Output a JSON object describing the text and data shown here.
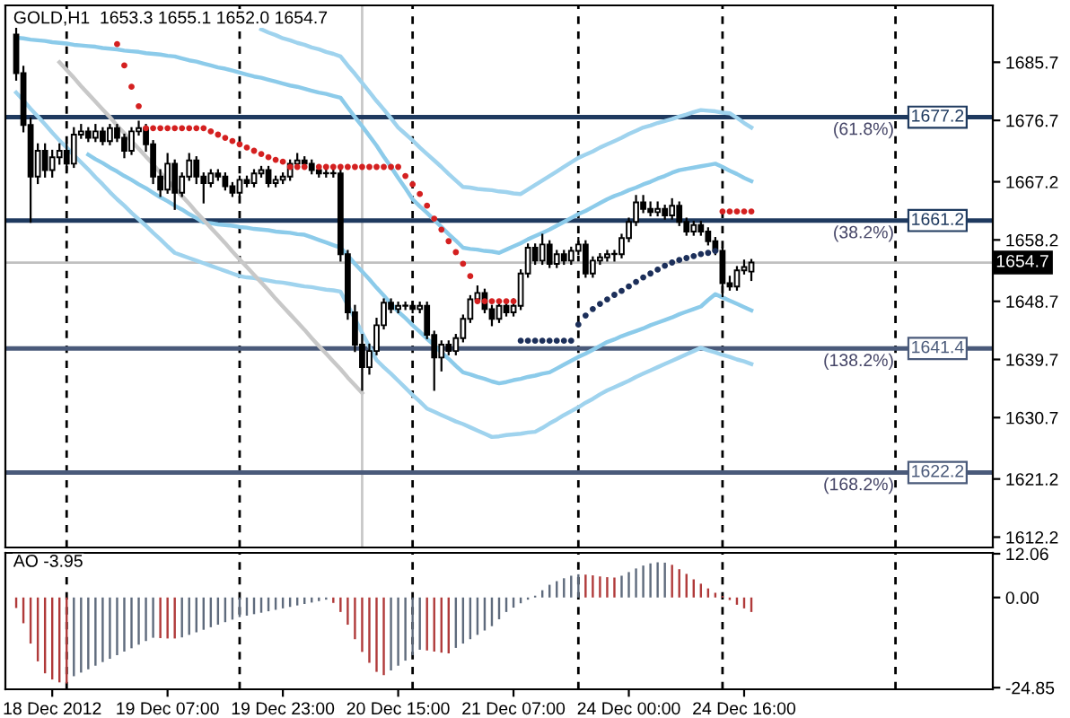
{
  "chart_data": [
    {
      "type": "candlestick",
      "title": "GOLD,H1  1653.3 1655.1 1652.0 1654.7",
      "tick_labels": "y",
      "grid": false,
      "ylim": [
        1610.6,
        1694.5
      ],
      "yticks": [
        1612.2,
        1621.2,
        1630.7,
        1639.7,
        1648.7,
        1658.2,
        1667.2,
        1676.7,
        1685.7
      ],
      "categories": [
        null,
        null,
        null,
        null,
        null,
        null,
        null,
        null,
        null,
        null,
        null,
        null,
        null,
        null,
        null,
        null,
        null,
        null,
        null,
        null,
        null,
        null,
        null,
        null,
        null,
        null,
        null,
        null,
        null,
        null,
        null,
        null,
        null,
        null,
        null,
        null,
        null,
        null,
        null,
        null,
        null,
        null,
        null,
        null,
        null,
        null,
        null,
        null,
        null,
        null,
        null,
        null,
        null,
        null,
        null,
        null,
        null,
        null,
        null,
        null,
        null,
        null,
        null,
        null,
        null,
        null,
        null,
        null,
        null,
        null,
        null,
        null,
        null,
        null,
        null,
        null,
        null,
        null,
        null,
        null,
        null,
        null,
        null,
        null,
        null,
        null,
        null,
        null,
        null,
        null,
        null,
        null,
        null,
        null,
        null,
        null,
        null,
        null,
        null,
        null,
        null,
        null,
        null,
        null,
        null,
        null,
        null,
        null,
        null,
        null,
        null,
        null,
        null,
        null,
        null,
        null,
        null,
        null,
        null,
        null,
        null,
        null,
        null,
        null,
        null,
        null,
        null,
        null,
        null,
        null,
        null,
        null,
        null,
        null,
        null,
        null,
        null
      ],
      "ohlc": [
        null,
        [
          1690,
          1691,
          1683,
          1684
        ],
        [
          1684,
          1685,
          1675,
          1676
        ],
        [
          1676,
          1677,
          1661,
          1668
        ],
        [
          1668,
          1673,
          1667,
          1672
        ],
        [
          1672,
          1673,
          1668,
          1669
        ],
        [
          1669,
          1672,
          1668,
          1671
        ],
        [
          1671,
          1673,
          1670,
          1672
        ],
        [
          1672,
          1673,
          1669,
          1670
        ],
        [
          1670,
          1675.5,
          1669.5,
          1674.5
        ],
        [
          1674.5,
          1676,
          1674,
          1675
        ],
        [
          1675,
          1675.5,
          1673.5,
          1674
        ],
        [
          1674,
          1676,
          1673.5,
          1675
        ],
        [
          1675,
          1675.5,
          1673,
          1673.5
        ],
        [
          1673.5,
          1676,
          1673,
          1675.5
        ],
        [
          1675.5,
          1676,
          1673.5,
          1674
        ],
        [
          1674,
          1674.5,
          1671,
          1672
        ],
        [
          1672,
          1675.5,
          1671.5,
          1675
        ],
        [
          1675,
          1676.5,
          1674.5,
          1675.5
        ],
        [
          1675.5,
          1676,
          1672,
          1673
        ],
        [
          1673,
          1673.5,
          1667,
          1668
        ],
        [
          1668,
          1669,
          1665,
          1666
        ],
        [
          1666,
          1671.5,
          1665.5,
          1670
        ],
        [
          1670,
          1670.5,
          1663,
          1665.5
        ],
        [
          1665.5,
          1668.5,
          1665,
          1668
        ],
        [
          1668,
          1671.5,
          1667.5,
          1670.5
        ],
        [
          1670.5,
          1671,
          1667,
          1668
        ],
        [
          1668,
          1668.5,
          1664,
          1667
        ],
        [
          1667,
          1669,
          1666.5,
          1668.5
        ],
        [
          1668.5,
          1669,
          1667.5,
          1668
        ],
        [
          1668,
          1668.5,
          1666,
          1666.5
        ],
        [
          1666.5,
          1667,
          1665,
          1665.5
        ],
        [
          1665.5,
          1668,
          1665,
          1667.5
        ],
        [
          1667.5,
          1668,
          1666.5,
          1667
        ],
        [
          1667,
          1669,
          1666.5,
          1668.5
        ],
        [
          1668.5,
          1669.5,
          1668,
          1669
        ],
        [
          1669,
          1669.5,
          1666.5,
          1667
        ],
        [
          1667,
          1668,
          1666.5,
          1667.5
        ],
        [
          1667.5,
          1668.5,
          1667,
          1668
        ],
        [
          1668,
          1670.5,
          1667.5,
          1670
        ],
        [
          1670,
          1671.5,
          1669.5,
          1670.5
        ],
        [
          1670.5,
          1671,
          1669.5,
          1670
        ],
        [
          1670,
          1670.5,
          1668.5,
          1669
        ],
        [
          1669,
          1669.5,
          1668,
          1668.5
        ],
        [
          1668.5,
          1669,
          1668,
          1668.5
        ],
        [
          1668.5,
          1669,
          1668,
          1668.5
        ],
        [
          1668.5,
          1669,
          1655,
          1656
        ],
        [
          1656,
          1656.5,
          1646,
          1647
        ],
        [
          1647,
          1648,
          1641,
          1642
        ],
        [
          1642,
          1643.5,
          1635,
          1638.5
        ],
        [
          1638.5,
          1642,
          1637.5,
          1641
        ],
        [
          1641,
          1646,
          1640.5,
          1645
        ],
        [
          1645,
          1649,
          1644.5,
          1648.5
        ],
        [
          1648.5,
          1649,
          1647,
          1647.5
        ],
        [
          1647.5,
          1648.5,
          1647,
          1648
        ],
        [
          1648,
          1648.5,
          1647.5,
          1648
        ],
        [
          1648,
          1648.5,
          1647,
          1647.5
        ],
        [
          1647.5,
          1648.5,
          1647,
          1648
        ],
        [
          1648,
          1648.5,
          1643,
          1643.5
        ],
        [
          1643.5,
          1644,
          1635,
          1640
        ],
        [
          1640,
          1642.5,
          1638,
          1642
        ],
        [
          1642,
          1642.5,
          1640.5,
          1641
        ],
        [
          1641,
          1643.5,
          1640.5,
          1643
        ],
        [
          1643,
          1646.5,
          1642.5,
          1646
        ],
        [
          1646,
          1649.5,
          1645.5,
          1649
        ],
        [
          1649,
          1651,
          1648.5,
          1650
        ],
        [
          1650,
          1650.5,
          1647,
          1647.5
        ],
        [
          1647.5,
          1648,
          1645,
          1646
        ],
        [
          1646,
          1648.5,
          1645.5,
          1648
        ],
        [
          1648,
          1648.5,
          1646.5,
          1647
        ],
        [
          1647,
          1649,
          1646.5,
          1648
        ],
        [
          1648,
          1653.5,
          1647.5,
          1653
        ],
        [
          1653,
          1657.5,
          1652.5,
          1657
        ],
        [
          1657,
          1657.5,
          1654.5,
          1655
        ],
        [
          1655,
          1659,
          1654.5,
          1657.5
        ],
        [
          1657.5,
          1658,
          1654,
          1654.5
        ],
        [
          1654.5,
          1656.5,
          1654,
          1656
        ],
        [
          1656,
          1656.5,
          1654.5,
          1655
        ],
        [
          1655,
          1657,
          1654.5,
          1656.5
        ],
        [
          1656.5,
          1658.5,
          1656,
          1657.5
        ],
        [
          1657.5,
          1658,
          1652.5,
          1653
        ],
        [
          1653,
          1655.5,
          1652.5,
          1655
        ],
        [
          1655,
          1656,
          1654.5,
          1655.5
        ],
        [
          1655.5,
          1656.5,
          1655,
          1656
        ],
        [
          1656,
          1656.5,
          1655,
          1656
        ],
        [
          1656,
          1659,
          1655.5,
          1658.5
        ],
        [
          1658.5,
          1661.5,
          1658,
          1661
        ],
        [
          1661,
          1665,
          1660.5,
          1664
        ],
        [
          1664,
          1665,
          1662.5,
          1663
        ],
        [
          1663,
          1664,
          1662,
          1662.5
        ],
        [
          1662.5,
          1664,
          1662,
          1663
        ],
        [
          1663,
          1663.5,
          1661.5,
          1662
        ],
        [
          1662,
          1664.5,
          1661.5,
          1663.5
        ],
        [
          1663.5,
          1664,
          1660.5,
          1661
        ],
        [
          1661,
          1661.5,
          1659,
          1659.5
        ],
        [
          1659.5,
          1661,
          1659,
          1660.5
        ],
        [
          1660.5,
          1661,
          1659,
          1659.5
        ],
        [
          1659.5,
          1660,
          1657.5,
          1658
        ],
        [
          1658,
          1658.5,
          1656,
          1656.5
        ],
        [
          1656.5,
          1657,
          1649.5,
          1651.5
        ],
        [
          1651.5,
          1652.5,
          1650.5,
          1651
        ],
        [
          1651,
          1654,
          1650.5,
          1653.5
        ],
        [
          1653.5,
          1655,
          1653,
          1654
        ],
        [
          1653.3,
          1655.1,
          1652.0,
          1654.7
        ],
        null,
        null,
        null,
        null,
        null,
        null,
        null,
        null,
        null,
        null,
        null,
        null,
        null,
        null,
        null,
        null,
        null,
        null,
        null,
        null,
        null,
        null,
        null,
        null,
        null,
        null,
        null,
        null,
        null,
        null,
        null,
        null,
        null
      ],
      "series": [
        {
          "type": "line",
          "color": "#9fd3ee",
          "values": [
            null,
            null,
            null,
            null,
            null,
            null,
            null,
            null,
            null,
            null,
            null,
            null,
            null,
            null,
            null,
            null,
            null,
            null,
            null,
            null,
            null,
            null,
            null,
            null,
            null,
            null,
            null,
            null,
            null,
            null,
            null,
            null,
            null,
            null,
            null,
            1690.8,
            1690.3,
            1689.9,
            1689.4,
            1689.1,
            1688.7,
            1688.4,
            1688.0,
            1687.7,
            1687.3,
            1687.0,
            1686.6,
            1685.2,
            1683.9,
            1682.5,
            1681.1,
            1679.7,
            1678.4,
            1677.0,
            1675.6,
            1674.6,
            1673.6,
            1672.5,
            1671.5,
            1670.5,
            1669.5,
            1668.4,
            1667.4,
            1666.4,
            1666.3,
            1666.1,
            1666.0,
            1665.9,
            1665.7,
            1665.6,
            1665.4,
            1665.3,
            1666.0,
            1666.7,
            1667.4,
            1668.1,
            1668.8,
            1669.5,
            1670.2,
            1670.9,
            1671.4,
            1671.9,
            1672.5,
            1673.0,
            1673.5,
            1674.0,
            1674.6,
            1675.1,
            1675.6,
            1675.9,
            1676.3,
            1676.6,
            1676.9,
            1677.3,
            1677.6,
            1678.0,
            1678.3,
            1678.2,
            1678.1,
            1677.9,
            1677.8,
            1677.1,
            1676.3,
            1675.6,
            null,
            null,
            null,
            null,
            null,
            null,
            null,
            null,
            null,
            null,
            null,
            null,
            null,
            null,
            null,
            null,
            null,
            null,
            null,
            null,
            null,
            null,
            null,
            null,
            null,
            null,
            null,
            null,
            null,
            null,
            null,
            null,
            null
          ]
        },
        {
          "type": "line",
          "color": "#8ccbea",
          "values": [
            null,
            1689.5,
            1689.4,
            1689.2,
            1689.1,
            1689.0,
            1688.8,
            1688.7,
            1688.6,
            1688.4,
            1688.3,
            1688.2,
            1688.1,
            1687.9,
            1687.8,
            1687.7,
            1687.5,
            1687.4,
            1687.3,
            1687.1,
            1687.0,
            1686.9,
            1686.7,
            1686.6,
            1686.3,
            1686.0,
            1685.8,
            1685.5,
            1685.2,
            1684.9,
            1684.7,
            1684.4,
            1684.1,
            1683.8,
            1683.5,
            1683.3,
            1683.0,
            1682.7,
            1682.4,
            1682.1,
            1681.9,
            1681.6,
            1681.3,
            1681.0,
            1680.8,
            1680.5,
            1680.2,
            1678.7,
            1677.2,
            1675.8,
            1674.3,
            1672.8,
            1671.1,
            1669.5,
            1667.8,
            1666.2,
            1664.5,
            1663.4,
            1662.4,
            1661.3,
            1660.2,
            1659.1,
            1658.1,
            1657.0,
            1656.8,
            1656.7,
            1656.5,
            1656.4,
            1656.2,
            1656.7,
            1657.2,
            1657.7,
            1658.3,
            1658.8,
            1659.3,
            1659.8,
            1660.4,
            1661.0,
            1661.6,
            1662.2,
            1662.7,
            1663.3,
            1663.9,
            1664.5,
            1665.0,
            1665.4,
            1665.9,
            1666.3,
            1666.8,
            1667.2,
            1667.7,
            1668.1,
            1668.6,
            1669.0,
            1669.2,
            1669.4,
            1669.6,
            1669.8,
            1670.0,
            1669.5,
            1668.9,
            1668.4,
            1667.8,
            1667.3,
            null,
            null,
            null,
            null,
            null,
            null,
            null,
            null,
            null,
            null,
            null,
            null,
            null,
            null,
            null,
            null,
            null,
            null,
            null,
            null,
            null,
            null,
            null,
            null,
            null,
            null,
            null,
            null,
            null,
            null,
            null,
            null,
            null
          ]
        },
        {
          "type": "line",
          "color": "#8ccbea",
          "values": [
            null,
            null,
            null,
            null,
            null,
            null,
            null,
            null,
            null,
            null,
            null,
            1671.4,
            1670.7,
            1670.1,
            1669.4,
            1668.8,
            1668.1,
            1667.5,
            1666.8,
            1666.2,
            1665.5,
            1664.8,
            1664.2,
            1663.5,
            1662.9,
            1662.2,
            1661.6,
            1660.9,
            1660.8,
            1660.6,
            1660.5,
            1660.4,
            1660.2,
            1660.1,
            1659.9,
            1659.8,
            1659.7,
            1659.5,
            1659.4,
            1659.3,
            1659.1,
            1659.0,
            1658.6,
            1658.2,
            1657.8,
            1657.4,
            1657.0,
            1655.8,
            1654.5,
            1653.3,
            1652.1,
            1650.8,
            1649.6,
            1648.3,
            1647.1,
            1646.1,
            1645.0,
            1644.0,
            1642.9,
            1641.9,
            1640.8,
            1639.8,
            1638.7,
            1637.7,
            1637.4,
            1637.0,
            1636.7,
            1636.3,
            1636.0,
            1636.2,
            1636.5,
            1636.7,
            1637.0,
            1637.2,
            1637.5,
            1637.7,
            1638.3,
            1638.9,
            1639.5,
            1640.1,
            1640.6,
            1641.2,
            1641.8,
            1642.4,
            1642.8,
            1643.3,
            1643.7,
            1644.1,
            1644.5,
            1645.0,
            1645.4,
            1645.8,
            1646.2,
            1646.7,
            1647.1,
            1647.5,
            1647.9,
            1648.9,
            1649.8,
            1649.3,
            1648.8,
            1648.3,
            1647.8,
            1647.3,
            null,
            null,
            null,
            null,
            null,
            null,
            null,
            null,
            null,
            null,
            null,
            null,
            null,
            null,
            null,
            null,
            null,
            null,
            null,
            null,
            null,
            null,
            null,
            null,
            null,
            null,
            null,
            null,
            null,
            null,
            null,
            null,
            null
          ]
        },
        {
          "type": "line",
          "color": "#9fd3ee",
          "values": [
            null,
            1681.0,
            1679.8,
            1678.5,
            1677.3,
            1676.1,
            1674.8,
            1673.6,
            1672.5,
            1671.3,
            1670.2,
            1669.1,
            1667.9,
            1666.8,
            1665.6,
            1664.5,
            1663.5,
            1662.4,
            1661.4,
            1660.4,
            1659.3,
            1658.3,
            1657.2,
            1656.2,
            1655.8,
            1655.4,
            1655.0,
            1654.6,
            1654.2,
            1653.8,
            1653.4,
            1653.0,
            1652.6,
            1652.4,
            1652.3,
            1652.1,
            1651.9,
            1651.7,
            1651.6,
            1651.4,
            1651.2,
            1651.0,
            1650.9,
            1650.7,
            1650.5,
            1650.4,
            1650.2,
            1648.1,
            1646.0,
            1643.8,
            1641.7,
            1639.6,
            1638.5,
            1637.5,
            1636.4,
            1635.3,
            1634.2,
            1633.2,
            1632.1,
            1631.6,
            1631.1,
            1630.6,
            1630.1,
            1629.7,
            1629.2,
            1628.7,
            1628.2,
            1627.7,
            1627.8,
            1628.0,
            1628.1,
            1628.2,
            1628.4,
            1628.5,
            1629.1,
            1629.8,
            1630.4,
            1631.1,
            1631.7,
            1632.3,
            1633.0,
            1633.6,
            1634.3,
            1634.9,
            1635.4,
            1635.9,
            1636.4,
            1637.0,
            1637.5,
            1638.0,
            1638.5,
            1639.0,
            1639.5,
            1640.0,
            1640.5,
            1641.0,
            1641.5,
            1641.1,
            1640.8,
            1640.4,
            1640.1,
            1639.7,
            1639.4,
            1639.0,
            null,
            null,
            null,
            null,
            null,
            null,
            null,
            null,
            null,
            null,
            null,
            null,
            null,
            null,
            null,
            null,
            null,
            null,
            null,
            null,
            null,
            null,
            null,
            null,
            null,
            null,
            null,
            null,
            null,
            null,
            null,
            null,
            null
          ]
        },
        {
          "type": "line",
          "color": "#c8c8c8",
          "values": [
            null,
            null,
            null,
            null,
            null,
            null,
            null,
            1685.7,
            1684.5,
            1683.3,
            1682.0,
            1680.8,
            1679.6,
            1678.4,
            1677.2,
            1675.9,
            1674.7,
            1673.5,
            1672.3,
            1671.1,
            1669.9,
            1668.6,
            1667.4,
            1666.2,
            1665.0,
            1663.8,
            1662.5,
            1661.3,
            1660.1,
            1658.9,
            1657.7,
            1656.4,
            1655.2,
            1654.0,
            1652.8,
            1651.6,
            1650.4,
            1649.1,
            1647.9,
            1646.7,
            1645.5,
            1644.3,
            1643.0,
            1641.8,
            1640.6,
            1639.4,
            1638.2,
            1636.9,
            1635.7,
            1634.5,
            null,
            null,
            null,
            null,
            null,
            null,
            null,
            null,
            null,
            null,
            null,
            null,
            null,
            null,
            null,
            null,
            null,
            null,
            null,
            null,
            null,
            null,
            null,
            null,
            null,
            null,
            null,
            null,
            null,
            null,
            null,
            null,
            null,
            null,
            null,
            null,
            null,
            null,
            null,
            null,
            null,
            null,
            null,
            null,
            null,
            null,
            null,
            null,
            null,
            null,
            null,
            null,
            null,
            null,
            null,
            null,
            null,
            null,
            null,
            null,
            null,
            null,
            null,
            null,
            null,
            null,
            null,
            null,
            null,
            null,
            null,
            null,
            null,
            null,
            null,
            null,
            null,
            null,
            null,
            null,
            null,
            null,
            null,
            null,
            null,
            null,
            null
          ]
        },
        {
          "type": "scatter",
          "color": "#d42020",
          "values": [
            null,
            null,
            null,
            null,
            null,
            null,
            null,
            null,
            null,
            null,
            null,
            null,
            null,
            null,
            null,
            1688.5,
            1685.2,
            1681.9,
            1678.9,
            1675.5,
            1675.5,
            1675.5,
            1675.5,
            1675.5,
            1675.5,
            1675.5,
            1675.5,
            1675.5,
            1675.0,
            1674.5,
            1674.0,
            1673.5,
            1673.0,
            1672.5,
            1672.0,
            1671.5,
            1671.0,
            1670.6,
            1670.3,
            1669.5,
            1669.5,
            1669.5,
            null,
            1669.5,
            1669.5,
            1669.5,
            1669.5,
            1669.5,
            1669.5,
            1669.5,
            1669.5,
            1669.5,
            1669.5,
            1669.5,
            1669.5,
            1668.1,
            1666.8,
            1665.3,
            1663.5,
            1661.5,
            1659.8,
            1658.0,
            1656.3,
            1654.5,
            1652.6,
            1648.7,
            1648.7,
            1648.7,
            1648.7,
            1648.7,
            1648.7,
            null,
            null,
            null,
            null,
            null,
            null,
            null,
            null,
            null,
            null,
            null,
            null,
            null,
            null,
            null,
            null,
            null,
            null,
            null,
            null,
            null,
            null,
            null,
            null,
            null,
            null,
            null,
            null,
            1662.6,
            1662.6,
            1662.6,
            1662.6,
            1662.6,
            null,
            null,
            null,
            null,
            null,
            null,
            null,
            null,
            null,
            null,
            null,
            null,
            null,
            null,
            null,
            null,
            null,
            null,
            null,
            null,
            null,
            null,
            null,
            null,
            null,
            null,
            null,
            null,
            null,
            null,
            null,
            null,
            null
          ]
        },
        {
          "type": "scatter",
          "color": "#1c2f5a",
          "values": [
            null,
            null,
            null,
            null,
            null,
            null,
            null,
            null,
            null,
            null,
            null,
            null,
            null,
            null,
            null,
            null,
            null,
            null,
            null,
            null,
            null,
            null,
            null,
            null,
            null,
            null,
            null,
            null,
            null,
            null,
            null,
            null,
            null,
            null,
            null,
            null,
            null,
            null,
            null,
            null,
            null,
            null,
            null,
            null,
            null,
            null,
            null,
            null,
            null,
            null,
            null,
            null,
            null,
            null,
            null,
            null,
            null,
            null,
            null,
            null,
            null,
            null,
            null,
            null,
            null,
            null,
            null,
            null,
            null,
            null,
            null,
            1642.6,
            1642.6,
            1642.6,
            1642.6,
            1642.6,
            1642.6,
            1642.6,
            1642.6,
            1645.1,
            1646.5,
            1647.5,
            1648.3,
            1649,
            1649.7,
            1650.3,
            1651,
            1651.7,
            1652.4,
            1653,
            1653.6,
            1654.2,
            1654.7,
            1655.1,
            1655.4,
            1655.7,
            1656,
            1656.2,
            1656.5,
            null,
            null,
            null,
            null,
            null,
            null,
            null,
            null,
            null,
            null,
            null,
            null,
            null,
            null,
            null,
            null,
            null,
            null,
            null,
            null,
            null,
            null,
            null,
            null,
            null,
            null,
            null,
            null,
            null,
            null,
            null,
            null,
            null,
            null,
            null,
            null,
            null,
            null
          ]
        }
      ],
      "ref_lines": [
        {
          "axis": "y",
          "value": 1677.2,
          "label": "1677.2",
          "color": "#1f3a5f"
        },
        {
          "axis": "y",
          "value": 1661.2,
          "label": "1661.2",
          "color": "#1f3a5f"
        },
        {
          "axis": "y",
          "value": 1641.4,
          "label": "1641.4",
          "color": "#4a5a7a"
        },
        {
          "axis": "y",
          "value": 1622.2,
          "label": "1622.2",
          "color": "#4a5a7a"
        },
        {
          "axis": "y",
          "value": 1654.7,
          "label": "1654.7",
          "color": "#c0c0c0"
        }
      ],
      "annotations": [
        {
          "text": "(61.8%)",
          "y": 1677.2
        },
        {
          "text": "(38.2%)",
          "y": 1661.2
        },
        {
          "text": "(138.2%)",
          "y": 1641.4
        },
        {
          "text": "(168.2%)",
          "y": 1622.2
        }
      ]
    },
    {
      "type": "bar",
      "title": "AO -3.95",
      "grid": false,
      "ylim": [
        -25.3,
        12.3
      ],
      "yticks": [
        12.06,
        {
          "value": 0,
          "label": "0.00"
        },
        -24.85
      ],
      "categories": [
        null,
        null,
        null,
        null,
        null,
        null,
        "18 Dec 2012",
        null,
        null,
        null,
        null,
        null,
        null,
        null,
        null,
        null,
        null,
        null,
        null,
        null,
        null,
        null,
        "19 Dec 07:00",
        null,
        null,
        null,
        null,
        null,
        null,
        null,
        null,
        null,
        null,
        null,
        null,
        null,
        null,
        null,
        "19 Dec 23:00",
        null,
        null,
        null,
        null,
        null,
        null,
        null,
        null,
        null,
        null,
        null,
        null,
        null,
        null,
        null,
        "20 Dec 15:00",
        null,
        null,
        null,
        null,
        null,
        null,
        null,
        null,
        null,
        null,
        null,
        null,
        null,
        null,
        null,
        "21 Dec 07:00",
        null,
        null,
        null,
        null,
        null,
        null,
        null,
        null,
        null,
        null,
        null,
        null,
        null,
        null,
        null,
        "24 Dec 00:00",
        null,
        null,
        null,
        null,
        null,
        null,
        null,
        null,
        null,
        null,
        null,
        null,
        null,
        null,
        null,
        "24 Dec 16:00",
        null,
        null,
        null,
        null,
        null,
        null,
        null,
        null,
        null,
        null,
        null,
        null,
        null,
        null,
        null,
        null,
        null,
        null,
        null,
        null,
        null,
        null,
        null,
        null,
        null,
        null,
        null,
        null,
        null,
        null,
        null,
        null,
        null,
        null
      ],
      "values": [
        null,
        -2.9,
        -7.1,
        -12.7,
        -17.6,
        -20.9,
        -22.6,
        -23.4,
        -23.7,
        -21.7,
        -20.7,
        -19.8,
        -18.8,
        -17.8,
        -16.9,
        -15.9,
        -14.9,
        -14.0,
        -13.0,
        -12.0,
        -11.1,
        -11.2,
        -11.3,
        -11.3,
        -11.0,
        -10.3,
        -9.6,
        -8.9,
        -8.2,
        -7.5,
        -6.8,
        -6.1,
        -5.4,
        -5.0,
        -4.6,
        -4.2,
        -3.8,
        -3.4,
        -3.0,
        -2.6,
        -2.2,
        -1.8,
        -1.4,
        -1.0,
        -0.6,
        -1.5,
        -4.0,
        -7.5,
        -11.5,
        -15.0,
        -18.0,
        -20.5,
        -21.4,
        -20.1,
        -18.8,
        -17.4,
        -15.9,
        -14.4,
        -14.6,
        -14.9,
        -15.2,
        -15.4,
        -13.9,
        -12.7,
        -11.5,
        -10.3,
        -9.1,
        -7.9,
        -6.0,
        -4.0,
        -2.8,
        -1.6,
        -0.6,
        0.5,
        2.0,
        3.5,
        4.5,
        5.3,
        6.0,
        6.4,
        6.3,
        6.1,
        5.8,
        5.6,
        5.5,
        6.0,
        7.0,
        8.0,
        8.8,
        9.4,
        9.7,
        9.6,
        9.0,
        7.8,
        6.5,
        5.0,
        3.8,
        2.5,
        1.3,
        0.4,
        -0.7,
        -2.0,
        -3.0,
        -4.0,
        null,
        null,
        null,
        null,
        null,
        null,
        null,
        null,
        null,
        null,
        null,
        null,
        null,
        null,
        null,
        null,
        null,
        null,
        null,
        null,
        null,
        null,
        null,
        null,
        null,
        null,
        null,
        null,
        null,
        null,
        null,
        null,
        null
      ],
      "colors": [
        null,
        "#b03a3a",
        "#b03a3a",
        "#b03a3a",
        "#b03a3a",
        "#b03a3a",
        "#b03a3a",
        "#b03a3a",
        "#b03a3a",
        "#5f6b7d",
        "#5f6b7d",
        "#5f6b7d",
        "#5f6b7d",
        "#5f6b7d",
        "#5f6b7d",
        "#5f6b7d",
        "#5f6b7d",
        "#5f6b7d",
        "#5f6b7d",
        "#5f6b7d",
        "#5f6b7d",
        "#b03a3a",
        "#b03a3a",
        "#b03a3a",
        "#5f6b7d",
        "#5f6b7d",
        "#5f6b7d",
        "#5f6b7d",
        "#5f6b7d",
        "#5f6b7d",
        "#5f6b7d",
        "#5f6b7d",
        "#5f6b7d",
        "#5f6b7d",
        "#5f6b7d",
        "#5f6b7d",
        "#5f6b7d",
        "#5f6b7d",
        "#5f6b7d",
        "#5f6b7d",
        "#5f6b7d",
        "#5f6b7d",
        "#5f6b7d",
        "#5f6b7d",
        "#5f6b7d",
        "#b03a3a",
        "#b03a3a",
        "#b03a3a",
        "#b03a3a",
        "#b03a3a",
        "#b03a3a",
        "#b03a3a",
        "#b03a3a",
        "#5f6b7d",
        "#5f6b7d",
        "#5f6b7d",
        "#5f6b7d",
        "#5f6b7d",
        "#b03a3a",
        "#b03a3a",
        "#b03a3a",
        "#b03a3a",
        "#5f6b7d",
        "#5f6b7d",
        "#5f6b7d",
        "#5f6b7d",
        "#5f6b7d",
        "#5f6b7d",
        "#5f6b7d",
        "#5f6b7d",
        "#5f6b7d",
        "#5f6b7d",
        "#5f6b7d",
        "#5f6b7d",
        "#5f6b7d",
        "#5f6b7d",
        "#5f6b7d",
        "#5f6b7d",
        "#5f6b7d",
        "#5f6b7d",
        "#b03a3a",
        "#b03a3a",
        "#b03a3a",
        "#b03a3a",
        "#b03a3a",
        "#5f6b7d",
        "#5f6b7d",
        "#5f6b7d",
        "#5f6b7d",
        "#5f6b7d",
        "#5f6b7d",
        "#5f6b7d",
        "#b03a3a",
        "#b03a3a",
        "#b03a3a",
        "#b03a3a",
        "#b03a3a",
        "#b03a3a",
        "#b03a3a",
        "#b03a3a",
        "#b03a3a",
        "#b03a3a",
        "#b03a3a",
        "#b03a3a",
        null,
        null,
        null,
        null,
        null,
        null,
        null,
        null,
        null,
        null,
        null,
        null,
        null,
        null,
        null,
        null,
        null,
        null,
        null,
        null,
        null,
        null,
        null,
        null,
        null,
        null,
        null,
        null,
        null,
        null,
        null,
        null,
        null
      ]
    }
  ]
}
